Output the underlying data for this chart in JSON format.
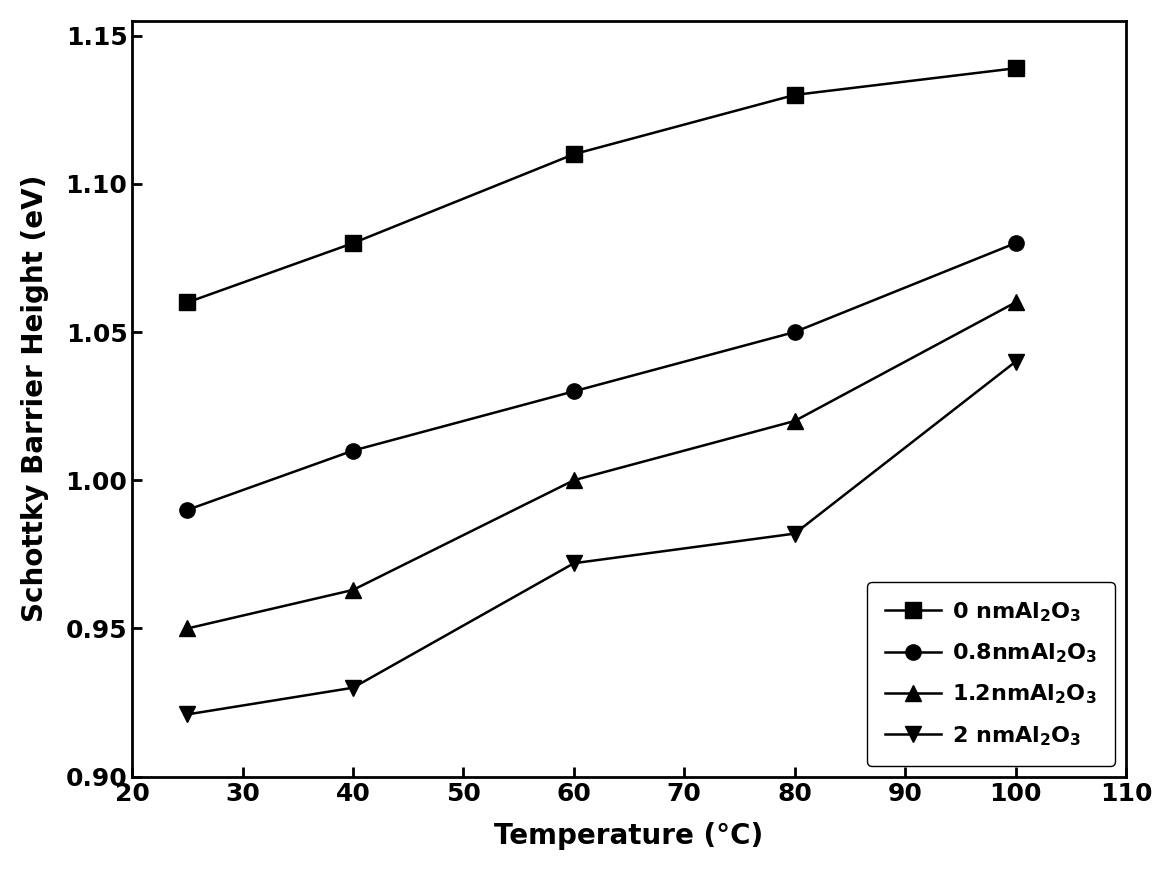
{
  "temperature": [
    25,
    40,
    60,
    80,
    100
  ],
  "series": [
    {
      "label": "0 nmAl$_2$O$_3$",
      "values": [
        1.06,
        1.08,
        1.11,
        1.13,
        1.139
      ],
      "marker": "s",
      "markersize": 11
    },
    {
      "label": "0.8nmAl$_2$O$_3$",
      "values": [
        0.99,
        1.01,
        1.03,
        1.05,
        1.08
      ],
      "marker": "o",
      "markersize": 11
    },
    {
      "label": "1.2nmAl$_2$O$_3$",
      "values": [
        0.95,
        0.963,
        1.0,
        1.02,
        1.06
      ],
      "marker": "^",
      "markersize": 11
    },
    {
      "label": "2 nmAl$_2$O$_3$",
      "values": [
        0.921,
        0.93,
        0.972,
        0.982,
        1.04
      ],
      "marker": "v",
      "markersize": 11
    }
  ],
  "xlabel": "Temperature (°C)",
  "ylabel": "Schottky Barrier Height (eV)",
  "xlim": [
    20,
    110
  ],
  "ylim": [
    0.9,
    1.155
  ],
  "xticks": [
    20,
    30,
    40,
    50,
    60,
    70,
    80,
    90,
    100,
    110
  ],
  "yticks": [
    0.9,
    0.95,
    1.0,
    1.05,
    1.1,
    1.15
  ],
  "line_color": "black",
  "marker_color": "black",
  "linewidth": 1.8,
  "legend_loc": "lower right",
  "legend_fontsize": 16,
  "axis_label_fontsize": 20,
  "tick_fontsize": 18
}
